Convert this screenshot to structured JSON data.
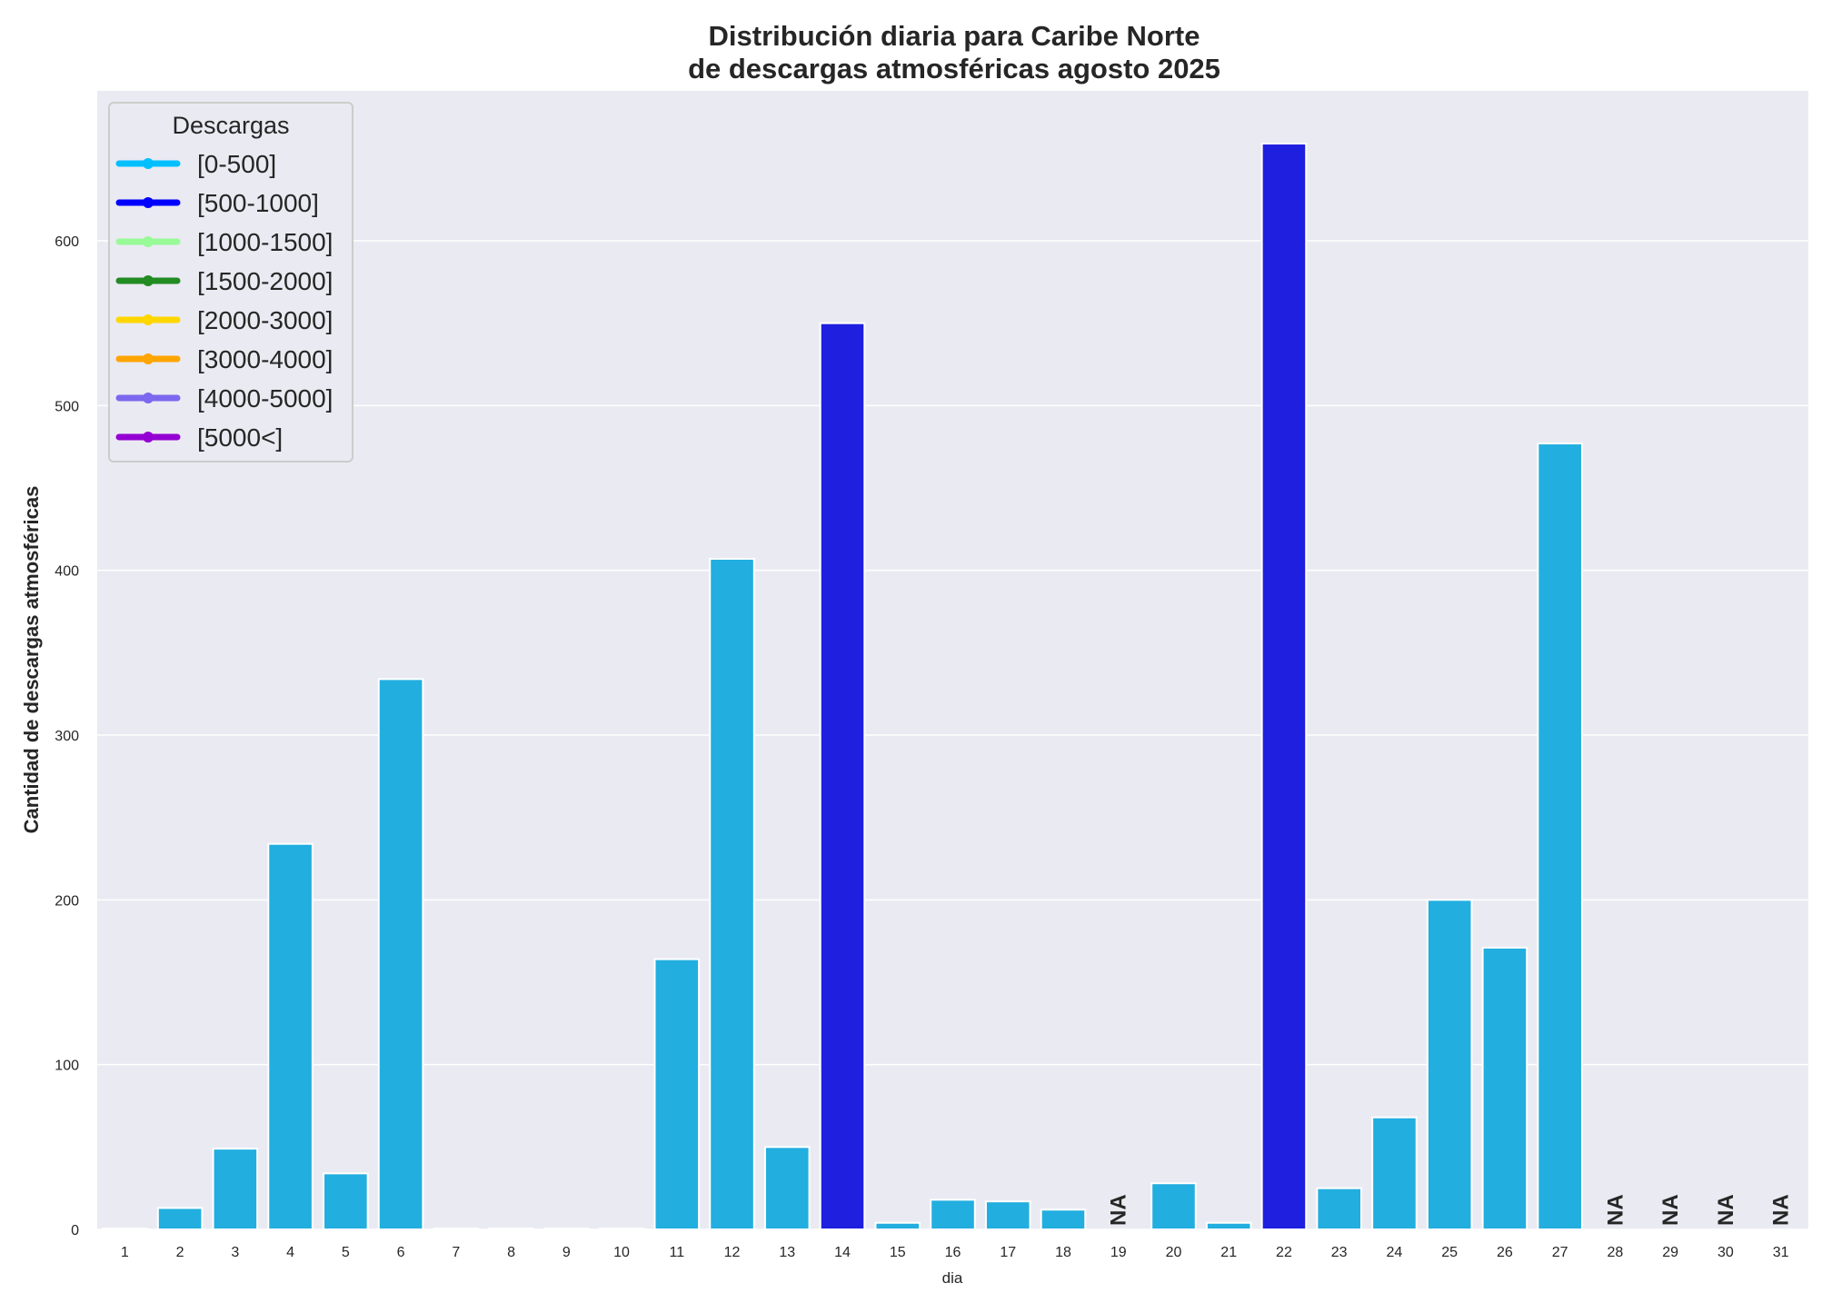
{
  "chart_data": {
    "type": "bar",
    "title_line1": "Distribución diaria para Caribe Norte",
    "title_line2": "de descargas atmosféricas agosto 2025",
    "xlabel": "dia",
    "ylabel": "Cantidad de descargas atmosféricas",
    "ylim": [
      0,
      691
    ],
    "yticks": [
      0,
      100,
      200,
      300,
      400,
      500,
      600
    ],
    "grid": true,
    "categories": [
      "1",
      "2",
      "3",
      "4",
      "5",
      "6",
      "7",
      "8",
      "9",
      "10",
      "11",
      "12",
      "13",
      "14",
      "15",
      "16",
      "17",
      "18",
      "19",
      "20",
      "21",
      "22",
      "23",
      "24",
      "25",
      "26",
      "27",
      "28",
      "29",
      "30",
      "31"
    ],
    "values": [
      0,
      13,
      49,
      234,
      34,
      334,
      0,
      0,
      0,
      0,
      164,
      407,
      50,
      550,
      4,
      18,
      17,
      12,
      null,
      28,
      4,
      659,
      25,
      68,
      200,
      171,
      477,
      null,
      null,
      null,
      null
    ],
    "na_label": "NA",
    "legend": {
      "title": "Descargas",
      "placement": "top-left",
      "entries": [
        {
          "label": "[0-500]",
          "color": "#00bfff"
        },
        {
          "label": "[500-1000]",
          "color": "#0000ff"
        },
        {
          "label": "[1000-1500]",
          "color": "#98fb98"
        },
        {
          "label": "[1500-2000]",
          "color": "#228b22"
        },
        {
          "label": "[2000-3000]",
          "color": "#ffd700"
        },
        {
          "label": "[3000-4000]",
          "color": "#ffa500"
        },
        {
          "label": "[4000-5000]",
          "color": "#7b68ee"
        },
        {
          "label": "[5000<]",
          "color": "#9400d3"
        }
      ]
    },
    "bar_colors": {
      "0-500": "#22aedf",
      "500-1000": "#1f1fe0"
    },
    "background": "#eaeaf2"
  }
}
